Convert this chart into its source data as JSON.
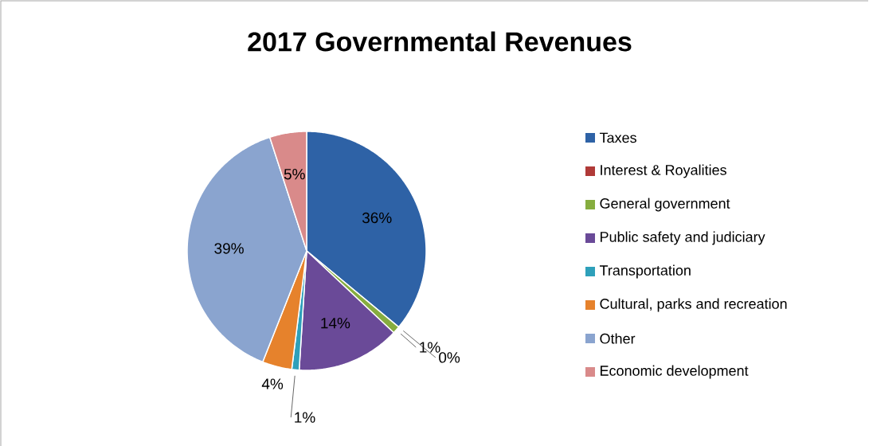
{
  "chart_data": {
    "type": "pie",
    "title": "2017 Governmental Revenues",
    "categories": [
      "Taxes",
      "Interest & Royalities",
      "General government",
      "Public safety and judiciary",
      "Transportation",
      "Cultural, parks and recreation",
      "Other",
      "Economic development"
    ],
    "values": [
      36,
      0,
      1,
      14,
      1,
      4,
      39,
      5
    ],
    "value_labels": [
      "36%",
      "0%",
      "1%",
      "14%",
      "1%",
      "4%",
      "39%",
      "5%"
    ],
    "colors": [
      "#2e62a6",
      "#b03a38",
      "#86ad3f",
      "#6a4a98",
      "#2ea0ba",
      "#e6822c",
      "#8aa4cf",
      "#d98a8a"
    ],
    "legend": "right"
  }
}
